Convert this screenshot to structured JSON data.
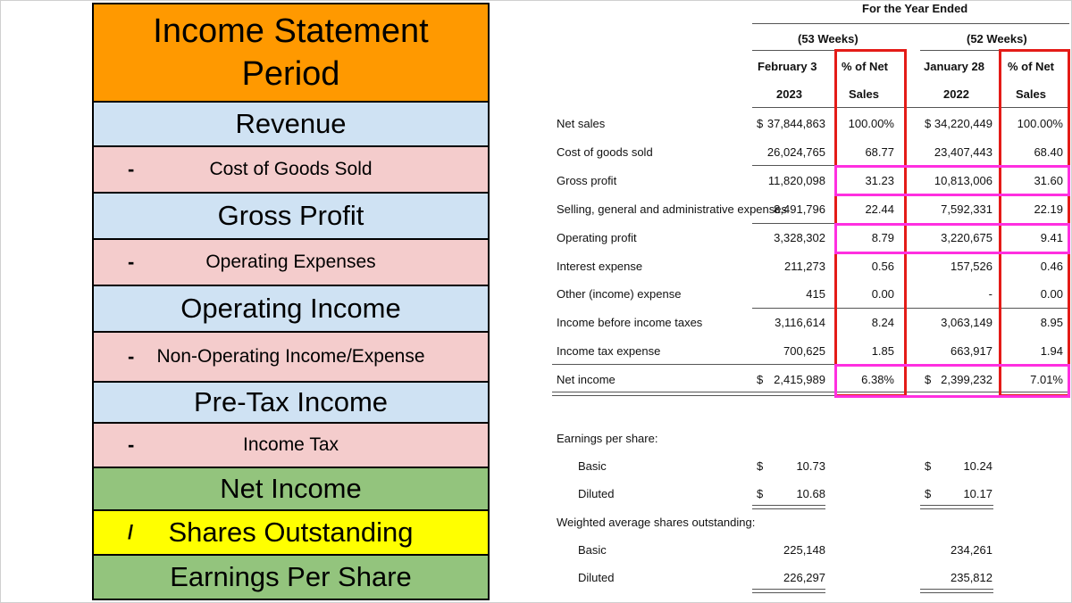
{
  "flow": {
    "title": "Income Statement Period",
    "steps": [
      {
        "sign": "",
        "label": "Revenue",
        "color": "#cfe2f3"
      },
      {
        "sign": "-",
        "label": "Cost of Goods Sold",
        "color": "#f4cccc"
      },
      {
        "sign": "",
        "label": "Gross Profit",
        "color": "#cfe2f3"
      },
      {
        "sign": "-",
        "label": "Operating Expenses",
        "color": "#f4cccc"
      },
      {
        "sign": "",
        "label": "Operating Income",
        "color": "#cfe2f3"
      },
      {
        "sign": "-",
        "label": "Non-Operating Income/Expense",
        "color": "#f4cccc"
      },
      {
        "sign": "",
        "label": "Pre-Tax Income",
        "color": "#cfe2f3"
      },
      {
        "sign": "-",
        "label": "Income Tax",
        "color": "#f4cccc"
      },
      {
        "sign": "",
        "label": "Net Income",
        "color": "#93c47d"
      },
      {
        "sign": "/",
        "label": "Shares Outstanding",
        "color": "#ffff00"
      },
      {
        "sign": "",
        "label": "Earnings Per Share",
        "color": "#93c47d"
      }
    ]
  },
  "statement": {
    "header_year": "For the Year Ended",
    "period_2023": "(53 Weeks)",
    "period_2022": "(52 Weeks)",
    "col_2023_date": "February 3",
    "col_2023_year": "2023",
    "col_2022_date": "January 28",
    "col_2022_year": "2022",
    "pct_label_1": "% of Net",
    "pct_label_2": "Sales",
    "rows": [
      {
        "label": "Net sales",
        "dollar_a": "$",
        "amount_2023": "37,844,863",
        "pct_2023": "100.00%",
        "dollar_b": "$",
        "amount_2022": "34,220,449",
        "pct_2022": "100.00%"
      },
      {
        "label": "Cost of goods sold",
        "dollar_a": "",
        "amount_2023": "26,024,765",
        "pct_2023": "68.77",
        "dollar_b": "",
        "amount_2022": "23,407,443",
        "pct_2022": "68.40"
      },
      {
        "label": "Gross profit",
        "dollar_a": "",
        "amount_2023": "11,820,098",
        "pct_2023": "31.23",
        "dollar_b": "",
        "amount_2022": "10,813,006",
        "pct_2022": "31.60"
      },
      {
        "label": "Selling, general and administrative expenses",
        "dollar_a": "",
        "amount_2023": "8,491,796",
        "pct_2023": "22.44",
        "dollar_b": "",
        "amount_2022": "7,592,331",
        "pct_2022": "22.19"
      },
      {
        "label": "Operating profit",
        "dollar_a": "",
        "amount_2023": "3,328,302",
        "pct_2023": "8.79",
        "dollar_b": "",
        "amount_2022": "3,220,675",
        "pct_2022": "9.41"
      },
      {
        "label": "Interest expense",
        "dollar_a": "",
        "amount_2023": "211,273",
        "pct_2023": "0.56",
        "dollar_b": "",
        "amount_2022": "157,526",
        "pct_2022": "0.46"
      },
      {
        "label": "Other (income) expense",
        "dollar_a": "",
        "amount_2023": "415",
        "pct_2023": "0.00",
        "dollar_b": "",
        "amount_2022": "-",
        "pct_2022": "0.00"
      },
      {
        "label": "Income before income taxes",
        "dollar_a": "",
        "amount_2023": "3,116,614",
        "pct_2023": "8.24",
        "dollar_b": "",
        "amount_2022": "3,063,149",
        "pct_2022": "8.95"
      },
      {
        "label": "Income tax expense",
        "dollar_a": "",
        "amount_2023": "700,625",
        "pct_2023": "1.85",
        "dollar_b": "",
        "amount_2022": "663,917",
        "pct_2022": "1.94"
      },
      {
        "label": "Net income",
        "dollar_a": "$",
        "amount_2023": "2,415,989",
        "pct_2023": "6.38%",
        "dollar_b": "$",
        "amount_2022": "2,399,232",
        "pct_2022": "7.01%"
      }
    ],
    "eps_heading": "Earnings per share:",
    "eps_rows": [
      {
        "label": "Basic",
        "dollar_a": "$",
        "value_2023": "10.73",
        "dollar_b": "$",
        "value_2022": "10.24"
      },
      {
        "label": "Diluted",
        "dollar_a": "$",
        "value_2023": "10.68",
        "dollar_b": "$",
        "value_2022": "10.17"
      }
    ],
    "shares_heading": "Weighted average shares outstanding:",
    "share_rows": [
      {
        "label": "Basic",
        "value_2023": "225,148",
        "value_2022": "234,261"
      },
      {
        "label": "Diluted",
        "value_2023": "226,297",
        "value_2022": "235,812"
      }
    ],
    "highlight_red": "#e41b17",
    "highlight_magenta": "#ff2fe0"
  }
}
